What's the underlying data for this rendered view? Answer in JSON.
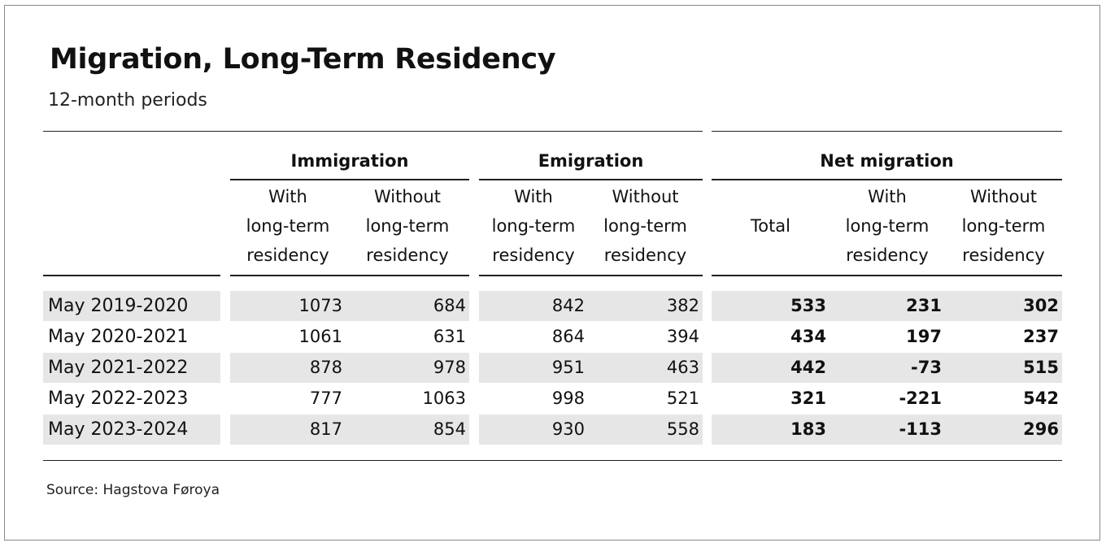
{
  "chart_data": {
    "type": "table",
    "title": "Migration, Long-Term Residency",
    "subtitle": "12-month periods",
    "groups": [
      {
        "label": "Immigration",
        "columns": [
          0,
          1
        ]
      },
      {
        "label": "Emigration",
        "columns": [
          2,
          3
        ]
      },
      {
        "label": "Net migration",
        "columns": [
          4,
          5,
          6
        ]
      }
    ],
    "columns": [
      {
        "lines": [
          "With",
          "long-term",
          "residency"
        ],
        "bold": false
      },
      {
        "lines": [
          "Without",
          "long-term",
          "residency"
        ],
        "bold": false
      },
      {
        "lines": [
          "With",
          "long-term",
          "residency"
        ],
        "bold": false
      },
      {
        "lines": [
          "Without",
          "long-term",
          "residency"
        ],
        "bold": false
      },
      {
        "lines": [
          "Total"
        ],
        "bold": true
      },
      {
        "lines": [
          "With",
          "long-term",
          "residency"
        ],
        "bold": true
      },
      {
        "lines": [
          "Without",
          "long-term",
          "residency"
        ],
        "bold": true
      }
    ],
    "rows": [
      {
        "label": "May 2019-2020",
        "values": [
          1073,
          684,
          842,
          382,
          533,
          231,
          302
        ]
      },
      {
        "label": "May 2020-2021",
        "values": [
          1061,
          631,
          864,
          394,
          434,
          197,
          237
        ]
      },
      {
        "label": "May 2021-2022",
        "values": [
          878,
          978,
          951,
          463,
          442,
          -73,
          515
        ]
      },
      {
        "label": "May 2022-2023",
        "values": [
          777,
          1063,
          998,
          521,
          321,
          -221,
          542
        ]
      },
      {
        "label": "May 2023-2024",
        "values": [
          817,
          854,
          930,
          558,
          183,
          -113,
          296
        ]
      }
    ],
    "source": "Source: Hagstova Føroya",
    "colors": {
      "shade": "#e6e6e6",
      "rule": "#222222",
      "text": "#111111"
    }
  }
}
